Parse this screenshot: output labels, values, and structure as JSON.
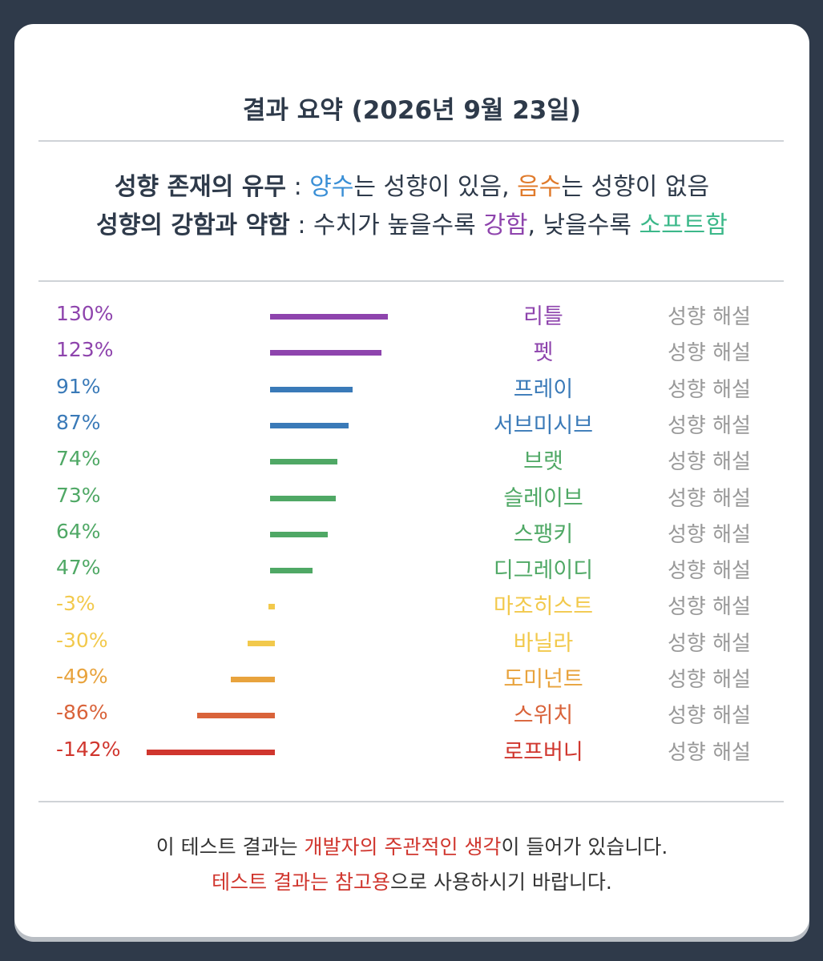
{
  "title": "결과 요약 (2026년 9월 23일)",
  "legend": {
    "line1": {
      "label": "성향 존재의 유무",
      "sep": " : ",
      "pos": "양수",
      "pos_rest": "는 성향이 있음, ",
      "neg": "음수",
      "neg_rest": "는 성향이 없음"
    },
    "line2": {
      "label": "성향의 강함과 약함",
      "sep": " : ",
      "a": "수치가 높을수록 ",
      "strong": "강함",
      "b": ", 낮을수록 ",
      "soft": "소프트함"
    }
  },
  "colors": {
    "purple": "#8e44ad",
    "blue": "#3a7ab8",
    "green": "#4fa865",
    "yellow": "#f2c94c",
    "amber": "#e8a33d",
    "orange": "#d9633a",
    "red": "#d0362e",
    "teal": "#3cb88a",
    "legend_blue": "#3a8fd6",
    "legend_orange": "#e07b2c"
  },
  "detail_label": "성향 해설",
  "chart_data": {
    "type": "bar",
    "orientation": "horizontal",
    "baseline": 0,
    "categories": [
      "리틀",
      "펫",
      "프레이",
      "서브미시브",
      "브랫",
      "슬레이브",
      "스팽키",
      "디그레이디",
      "마조히스트",
      "바닐라",
      "도미넌트",
      "스위치",
      "로프버니"
    ],
    "values": [
      130,
      123,
      91,
      87,
      74,
      73,
      64,
      47,
      -3,
      -30,
      -49,
      -86,
      -142
    ],
    "labels": [
      "130%",
      "123%",
      "91%",
      "87%",
      "74%",
      "73%",
      "64%",
      "47%",
      "-3%",
      "-30%",
      "-49%",
      "-86%",
      "-142%"
    ],
    "colors": [
      "#8e44ad",
      "#8e44ad",
      "#3a7ab8",
      "#3a7ab8",
      "#4fa865",
      "#4fa865",
      "#4fa865",
      "#4fa865",
      "#f2c94c",
      "#f2c94c",
      "#e8a33d",
      "#d9633a",
      "#d0362e"
    ]
  },
  "footer": {
    "line1_a": "이 테스트 결과는 ",
    "line1_b": "개발자의 주관적인 생각",
    "line1_c": "이 들어가 있습니다.",
    "line2_a": "테스트 결과는 참고용",
    "line2_b": "으로 사용하시기 바랍니다."
  }
}
